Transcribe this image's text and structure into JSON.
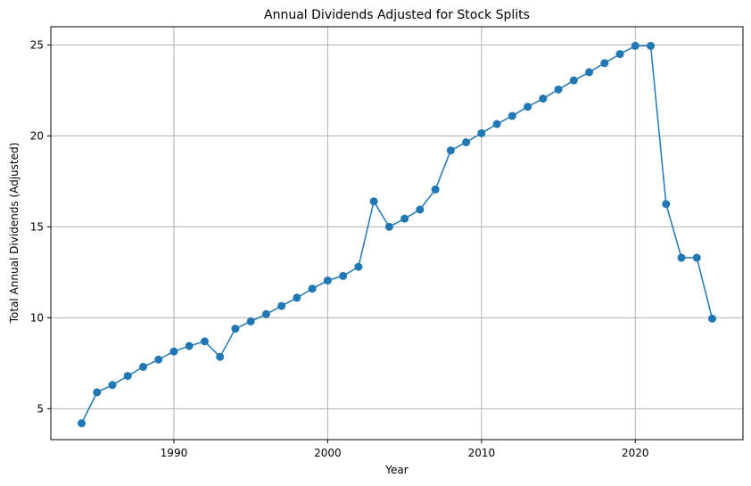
{
  "chart_data": {
    "type": "line",
    "title": "Annual Dividends Adjusted for Stock Splits",
    "xlabel": "Year",
    "ylabel": "Total Annual Dividends (Adjusted)",
    "xlim": [
      1982.0,
      2027.0
    ],
    "ylim": [
      3.3,
      26.0
    ],
    "xticks": [
      1990,
      2000,
      2010,
      2020
    ],
    "yticks": [
      5,
      10,
      15,
      20,
      25
    ],
    "grid": true,
    "color": "#1f77b4",
    "marker": "circle",
    "series": [
      {
        "x": [
          1984,
          1985,
          1986,
          1987,
          1988,
          1989,
          1990,
          1991,
          1992,
          1993,
          1994,
          1995,
          1996,
          1997,
          1998,
          1999,
          2000,
          2001,
          2002,
          2003,
          2004,
          2005,
          2006,
          2007,
          2008,
          2009,
          2010,
          2011,
          2012,
          2013,
          2014,
          2015,
          2016,
          2017,
          2018,
          2019,
          2020,
          2021,
          2022,
          2023,
          2024,
          2025
        ],
        "y": [
          4.2,
          5.9,
          6.3,
          6.8,
          7.3,
          7.7,
          8.15,
          8.45,
          8.7,
          7.85,
          9.4,
          9.8,
          10.2,
          10.65,
          11.1,
          11.6,
          12.05,
          12.3,
          12.8,
          16.4,
          15.0,
          15.45,
          15.95,
          17.05,
          19.2,
          19.65,
          20.15,
          20.65,
          21.1,
          21.6,
          22.05,
          22.55,
          23.05,
          23.5,
          24.0,
          24.5,
          24.95,
          24.95,
          16.25,
          13.3,
          13.3,
          9.95
        ]
      }
    ]
  }
}
